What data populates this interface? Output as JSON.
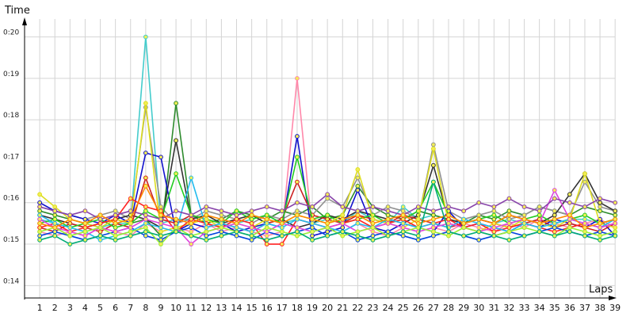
{
  "chart_data": {
    "type": "line",
    "xlabel": "Laps",
    "ylabel": "Time",
    "x": [
      1,
      2,
      3,
      4,
      5,
      6,
      7,
      8,
      9,
      10,
      11,
      12,
      13,
      14,
      15,
      16,
      17,
      18,
      19,
      20,
      21,
      22,
      23,
      24,
      25,
      26,
      27,
      28,
      29,
      30,
      31,
      32,
      33,
      34,
      35,
      36,
      37,
      38,
      39
    ],
    "y_ticks": [
      "0:14",
      "0:15",
      "0:16",
      "0:17",
      "0:18",
      "0:19",
      "0:20"
    ],
    "ylim": [
      13.7,
      20.7
    ],
    "xlim": [
      0,
      39.2
    ],
    "grid": true,
    "legend": "none",
    "series": [
      {
        "color": "#44cccc",
        "values": [
          15.6,
          15.5,
          15.4,
          15.3,
          15.4,
          15.5,
          15.5,
          20.0,
          15.5,
          15.6,
          15.6,
          15.5,
          15.6,
          15.5,
          15.6,
          15.7,
          15.5,
          15.6,
          15.5,
          15.6,
          15.5,
          15.8,
          15.6,
          15.5,
          15.9,
          15.6,
          15.7,
          15.6,
          15.5,
          15.6,
          15.5,
          15.6,
          15.5,
          15.6,
          15.5,
          15.6,
          15.6,
          15.5,
          15.6
        ]
      },
      {
        "color": "#ff88aa",
        "values": [
          15.3,
          15.2,
          15.3,
          15.2,
          15.4,
          15.3,
          15.2,
          15.5,
          15.3,
          15.4,
          15.3,
          15.5,
          15.3,
          15.4,
          15.3,
          15.2,
          15.3,
          19.0,
          15.3,
          15.4,
          15.3,
          15.5,
          15.3,
          15.2,
          15.4,
          15.3,
          15.4,
          15.3,
          15.5,
          15.4,
          15.3,
          15.5,
          15.4,
          15.6,
          15.5,
          15.4,
          15.5,
          15.6,
          15.4
        ]
      },
      {
        "color": "#2e8b2e",
        "values": [
          15.8,
          15.7,
          15.6,
          15.5,
          15.4,
          15.6,
          15.5,
          15.6,
          15.2,
          18.4,
          15.7,
          15.5,
          15.6,
          15.8,
          15.7,
          15.6,
          15.8,
          15.7,
          15.9,
          15.6,
          15.7,
          16.4,
          15.9,
          15.7,
          15.6,
          15.8,
          15.7,
          15.6,
          15.5,
          15.7,
          15.6,
          15.8,
          15.7,
          15.9,
          15.8,
          15.7,
          15.9,
          15.8,
          15.7
        ]
      },
      {
        "color": "#909090",
        "values": [
          15.9,
          15.8,
          15.7,
          15.6,
          15.7,
          15.8,
          15.6,
          18.3,
          15.9,
          15.5,
          15.6,
          15.8,
          15.7,
          15.6,
          15.5,
          15.7,
          15.6,
          15.8,
          15.7,
          16.1,
          15.9,
          16.6,
          15.7,
          15.9,
          15.8,
          15.6,
          17.4,
          15.8,
          15.6,
          15.7,
          15.8,
          15.6,
          15.7,
          15.9,
          15.8,
          15.7,
          16.5,
          15.9,
          15.8
        ]
      },
      {
        "color": "#333333",
        "values": [
          15.7,
          15.6,
          15.5,
          15.4,
          15.5,
          15.6,
          15.7,
          15.6,
          15.4,
          17.5,
          15.6,
          15.7,
          15.5,
          15.6,
          15.7,
          15.5,
          15.6,
          15.4,
          15.5,
          15.7,
          15.6,
          15.8,
          15.7,
          15.6,
          15.5,
          15.7,
          16.9,
          15.6,
          15.5,
          15.6,
          15.5,
          15.7,
          15.6,
          15.5,
          15.7,
          16.2,
          16.7,
          16.0,
          15.8
        ]
      },
      {
        "color": "#1111cc",
        "values": [
          16.0,
          15.8,
          15.7,
          15.6,
          15.5,
          15.7,
          15.5,
          17.2,
          17.1,
          15.3,
          15.5,
          15.4,
          15.5,
          15.3,
          15.4,
          15.5,
          15.4,
          17.6,
          15.2,
          15.3,
          15.4,
          16.3,
          15.4,
          15.3,
          15.5,
          15.4,
          15.3,
          15.8,
          15.4,
          15.5,
          15.4,
          15.3,
          15.5,
          15.4,
          15.6,
          15.5,
          15.4,
          15.6,
          15.2
        ]
      },
      {
        "color": "#cc2222",
        "values": [
          15.4,
          15.3,
          15.5,
          15.4,
          15.3,
          15.5,
          15.4,
          16.6,
          15.6,
          15.5,
          15.7,
          15.6,
          15.5,
          15.4,
          15.3,
          15.5,
          15.6,
          16.5,
          15.7,
          15.6,
          15.5,
          15.7,
          15.6,
          15.5,
          15.7,
          15.6,
          15.5,
          15.4,
          15.5,
          15.6,
          15.5,
          15.4,
          15.5,
          15.6,
          15.4,
          15.5,
          15.4,
          15.3,
          15.5
        ]
      },
      {
        "color": "#22cc22",
        "values": [
          15.5,
          15.6,
          15.4,
          15.5,
          15.6,
          15.4,
          15.5,
          15.8,
          15.6,
          16.7,
          15.7,
          15.6,
          15.5,
          15.8,
          15.6,
          15.7,
          15.5,
          17.1,
          15.6,
          15.7,
          15.5,
          15.6,
          15.7,
          15.5,
          15.6,
          15.8,
          16.5,
          15.7,
          15.5,
          15.6,
          15.7,
          15.5,
          15.6,
          15.7,
          15.5,
          15.6,
          15.7,
          15.5,
          15.6
        ]
      },
      {
        "color": "#dddd22",
        "values": [
          16.2,
          15.9,
          15.6,
          15.5,
          15.4,
          15.6,
          15.5,
          18.4,
          15.3,
          15.4,
          15.5,
          15.6,
          15.4,
          15.5,
          15.4,
          15.6,
          15.5,
          15.7,
          15.6,
          15.5,
          15.7,
          16.8,
          15.6,
          15.5,
          15.4,
          15.6,
          17.3,
          15.5,
          15.4,
          15.3,
          15.5,
          15.4,
          15.6,
          15.5,
          15.4,
          15.6,
          16.7,
          15.5,
          15.4
        ]
      },
      {
        "color": "#ff2222",
        "values": [
          15.4,
          15.5,
          15.3,
          15.4,
          15.5,
          15.6,
          16.1,
          15.9,
          15.8,
          15.3,
          15.6,
          15.5,
          15.4,
          15.6,
          15.5,
          15.0,
          15.0,
          15.6,
          15.5,
          15.4,
          15.5,
          15.6,
          15.4,
          15.5,
          15.6,
          15.4,
          15.5,
          15.6,
          15.4,
          15.5,
          15.3,
          15.4,
          15.5,
          15.4,
          15.3,
          15.4,
          15.5,
          15.4,
          15.5
        ]
      },
      {
        "color": "#0044dd",
        "values": [
          15.2,
          15.3,
          15.2,
          15.1,
          15.2,
          15.3,
          15.4,
          15.2,
          15.1,
          15.3,
          15.4,
          15.2,
          15.3,
          15.2,
          15.1,
          15.3,
          15.2,
          15.3,
          15.4,
          15.2,
          15.3,
          15.1,
          15.2,
          15.3,
          15.2,
          15.1,
          15.2,
          15.3,
          15.2,
          15.1,
          15.2,
          15.3,
          15.2,
          15.3,
          15.4,
          15.3,
          15.2,
          15.3,
          15.2
        ]
      },
      {
        "color": "#22bbee",
        "values": [
          15.7,
          15.5,
          15.4,
          15.3,
          15.1,
          15.2,
          15.3,
          15.5,
          15.4,
          15.3,
          16.6,
          15.4,
          15.5,
          15.4,
          15.3,
          15.5,
          15.4,
          15.6,
          15.5,
          15.4,
          15.3,
          15.5,
          15.4,
          15.6,
          15.5,
          15.4,
          15.5,
          15.4,
          15.6,
          15.5,
          15.4,
          15.3,
          15.5,
          15.4,
          15.5,
          15.6,
          15.5,
          15.4,
          15.6
        ]
      },
      {
        "color": "#dd44dd",
        "values": [
          15.6,
          15.4,
          15.3,
          15.2,
          15.4,
          15.3,
          15.4,
          15.6,
          15.5,
          15.4,
          15.0,
          15.3,
          15.4,
          15.5,
          15.4,
          15.3,
          15.5,
          15.4,
          15.3,
          15.4,
          15.5,
          15.3,
          15.4,
          15.5,
          15.4,
          15.3,
          15.4,
          15.5,
          15.4,
          15.3,
          15.4,
          15.5,
          15.6,
          15.5,
          16.3,
          15.6,
          15.5,
          15.4,
          15.5
        ]
      },
      {
        "color": "#8844aa",
        "values": [
          15.9,
          15.8,
          15.7,
          15.8,
          15.6,
          15.7,
          15.8,
          15.7,
          15.6,
          15.8,
          15.7,
          15.9,
          15.8,
          15.7,
          15.8,
          15.9,
          15.8,
          16.0,
          15.9,
          16.2,
          15.9,
          15.8,
          15.9,
          15.8,
          15.7,
          15.9,
          15.8,
          15.9,
          15.8,
          16.0,
          15.9,
          16.1,
          15.9,
          15.8,
          16.1,
          16.0,
          15.9,
          16.1,
          16.0
        ]
      },
      {
        "color": "#99ee33",
        "values": [
          15.3,
          15.4,
          15.2,
          15.3,
          15.4,
          15.2,
          15.3,
          15.4,
          15.0,
          15.4,
          15.2,
          15.3,
          15.4,
          15.3,
          15.2,
          15.4,
          15.3,
          15.2,
          15.3,
          15.4,
          15.2,
          15.3,
          15.4,
          15.2,
          15.3,
          15.4,
          15.3,
          15.2,
          15.4,
          15.3,
          15.2,
          15.3,
          15.4,
          15.3,
          15.2,
          15.4,
          15.3,
          15.2,
          15.3
        ]
      },
      {
        "color": "#ff8800",
        "values": [
          15.5,
          15.4,
          15.6,
          15.5,
          15.7,
          15.5,
          15.6,
          16.4,
          15.7,
          15.6,
          15.5,
          15.7,
          15.6,
          15.5,
          15.7,
          15.6,
          15.5,
          15.7,
          15.6,
          15.5,
          15.6,
          15.7,
          15.5,
          15.6,
          15.7,
          15.5,
          15.6,
          15.7,
          15.5,
          15.6,
          15.5,
          15.7,
          15.6,
          15.5,
          15.6,
          15.7,
          15.4,
          15.5,
          15.6
        ]
      },
      {
        "color": "#00aa77",
        "values": [
          15.1,
          15.2,
          15.0,
          15.1,
          15.2,
          15.1,
          15.2,
          15.3,
          15.2,
          15.3,
          15.2,
          15.1,
          15.2,
          15.3,
          15.2,
          15.1,
          15.2,
          15.3,
          15.1,
          15.2,
          15.3,
          15.2,
          15.1,
          15.2,
          15.3,
          15.2,
          16.5,
          15.3,
          15.2,
          15.3,
          15.2,
          15.1,
          15.2,
          15.3,
          15.2,
          15.3,
          15.2,
          15.1,
          15.2
        ]
      }
    ]
  }
}
